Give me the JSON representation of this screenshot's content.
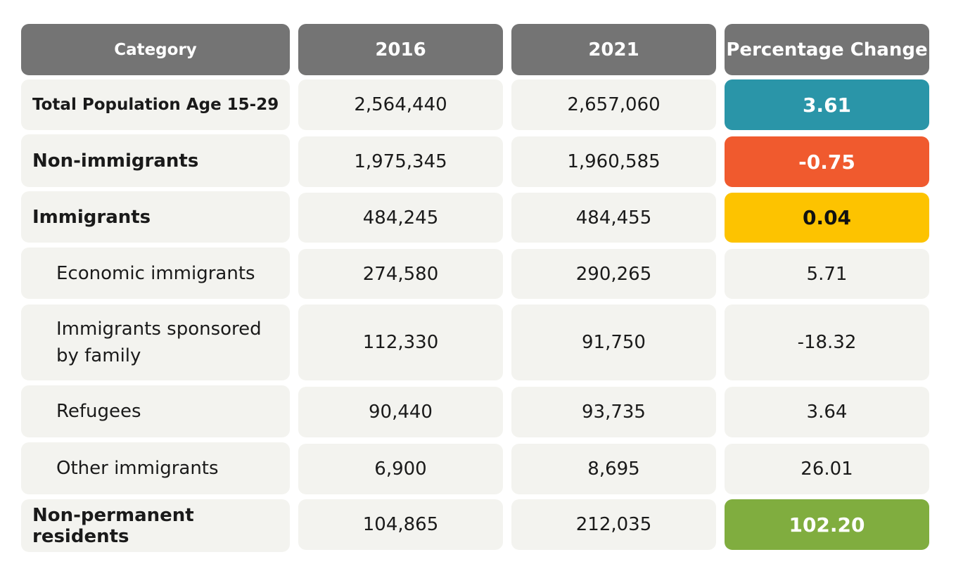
{
  "chart_data": {
    "type": "table",
    "columns": [
      "Category",
      "2016",
      "2021",
      "Percentage Change"
    ],
    "rows": [
      {
        "category": "Total Population Age 15-29",
        "y2016": "2,564,440",
        "y2021": "2,657,060",
        "change": "3.61",
        "highlight": "#2a95a8"
      },
      {
        "category": "Non-immigrants",
        "y2016": "1,975,345",
        "y2021": "1,960,585",
        "change": "-0.75",
        "highlight": "#f05a2e"
      },
      {
        "category": "Immigrants",
        "y2016": "484,245",
        "y2021": "484,455",
        "change": "0.04",
        "highlight": "#fdc300"
      },
      {
        "category": "Economic immigrants",
        "y2016": "274,580",
        "y2021": "290,265",
        "change": "5.71",
        "highlight": null
      },
      {
        "category": "Immigrants sponsored by family",
        "y2016": "112,330",
        "y2021": "91,750",
        "change": "-18.32",
        "highlight": null
      },
      {
        "category": "Refugees",
        "y2016": "90,440",
        "y2021": "93,735",
        "change": "3.64",
        "highlight": null
      },
      {
        "category": "Other immigrants",
        "y2016": "6,900",
        "y2021": "8,695",
        "change": "26.01",
        "highlight": null
      },
      {
        "category": "Non-permanent residents",
        "y2016": "104,865",
        "y2021": "212,035",
        "change": "102.20",
        "highlight": "#80ad3f"
      }
    ]
  },
  "colors": {
    "header_bg": "#747474",
    "cell_bg": "#f3f3ef"
  }
}
